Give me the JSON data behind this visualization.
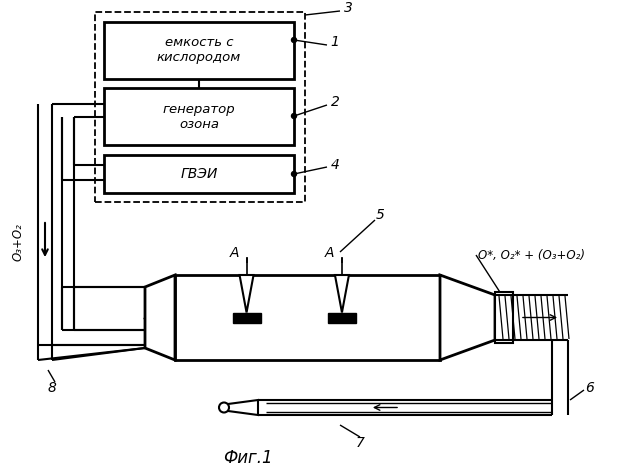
{
  "bg_color": "#ffffff",
  "title": "Фиг.1",
  "box1_text": "емкость с\nкислородом",
  "box2_text": "генератор\nозона",
  "box3_text": "ГВЭИ",
  "o3o2_label": "O₃+O₂",
  "output_label": "O*, O₂* + (O₃+O₂)"
}
